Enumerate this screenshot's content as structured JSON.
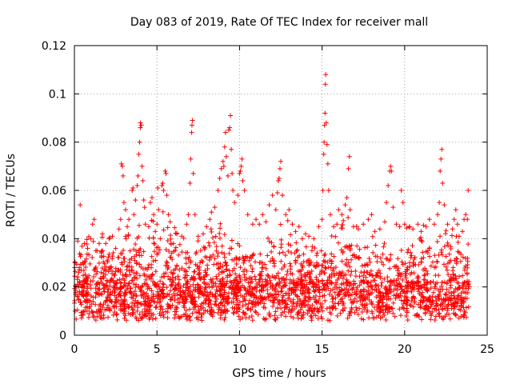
{
  "chart_data": {
    "type": "scatter",
    "title": "Day 083 of 2019, Rate Of TEC Index for receiver mall",
    "xlabel": "GPS time / hours",
    "ylabel": "ROTI / TECUs",
    "xlim": [
      0,
      25
    ],
    "ylim": [
      0,
      0.12
    ],
    "x_ticks": [
      0,
      5,
      10,
      15,
      20,
      25
    ],
    "x_tick_labels": [
      "0",
      "5",
      "10",
      "15",
      "20",
      "25"
    ],
    "y_ticks": [
      0,
      0.02,
      0.04,
      0.06,
      0.08,
      0.1,
      0.12
    ],
    "y_tick_labels": [
      "0",
      "0.02",
      "0.04",
      "0.06",
      "0.08",
      "0.1",
      "0.12"
    ],
    "grid": true,
    "marker": "+",
    "marker_color": "#ff0000",
    "series": [
      {
        "name": "ROTI",
        "points": [
          [
            0.05,
            0.03
          ],
          [
            0.1,
            0.02
          ],
          [
            0.2,
            0.039
          ],
          [
            0.3,
            0.028
          ],
          [
            0.35,
            0.054
          ],
          [
            0.5,
            0.03
          ],
          [
            0.6,
            0.038
          ],
          [
            0.8,
            0.036
          ],
          [
            1.0,
            0.04
          ],
          [
            1.1,
            0.046
          ],
          [
            1.2,
            0.048
          ],
          [
            1.3,
            0.035
          ],
          [
            1.5,
            0.038
          ],
          [
            1.7,
            0.042
          ],
          [
            1.9,
            0.038
          ],
          [
            2.1,
            0.04
          ],
          [
            2.3,
            0.041
          ],
          [
            2.5,
            0.036
          ],
          [
            2.7,
            0.044
          ],
          [
            2.8,
            0.048
          ],
          [
            2.85,
            0.071
          ],
          [
            2.9,
            0.07
          ],
          [
            2.95,
            0.066
          ],
          [
            3.0,
            0.055
          ],
          [
            3.1,
            0.052
          ],
          [
            3.2,
            0.045
          ],
          [
            3.3,
            0.048
          ],
          [
            3.5,
            0.06
          ],
          [
            3.55,
            0.061
          ],
          [
            3.6,
            0.05
          ],
          [
            3.7,
            0.056
          ],
          [
            3.8,
            0.062
          ],
          [
            3.85,
            0.066
          ],
          [
            3.9,
            0.075
          ],
          [
            3.95,
            0.08
          ],
          [
            4.0,
            0.086
          ],
          [
            4.0,
            0.088
          ],
          [
            4.05,
            0.087
          ],
          [
            4.1,
            0.07
          ],
          [
            4.15,
            0.064
          ],
          [
            4.2,
            0.056
          ],
          [
            4.25,
            0.053
          ],
          [
            4.3,
            0.046
          ],
          [
            4.5,
            0.045
          ],
          [
            4.6,
            0.055
          ],
          [
            4.7,
            0.057
          ],
          [
            4.8,
            0.05
          ],
          [
            4.9,
            0.043
          ],
          [
            5.0,
            0.046
          ],
          [
            5.05,
            0.061
          ],
          [
            5.1,
            0.052
          ],
          [
            5.2,
            0.04
          ],
          [
            5.3,
            0.062
          ],
          [
            5.35,
            0.063
          ],
          [
            5.4,
            0.06
          ],
          [
            5.5,
            0.068
          ],
          [
            5.55,
            0.067
          ],
          [
            5.6,
            0.058
          ],
          [
            5.7,
            0.05
          ],
          [
            5.8,
            0.047
          ],
          [
            6.0,
            0.038
          ],
          [
            6.2,
            0.042
          ],
          [
            6.5,
            0.041
          ],
          [
            6.8,
            0.046
          ],
          [
            6.9,
            0.05
          ],
          [
            7.0,
            0.063
          ],
          [
            7.05,
            0.073
          ],
          [
            7.1,
            0.084
          ],
          [
            7.12,
            0.087
          ],
          [
            7.15,
            0.089
          ],
          [
            7.2,
            0.067
          ],
          [
            7.3,
            0.05
          ],
          [
            7.5,
            0.041
          ],
          [
            7.8,
            0.042
          ],
          [
            8.0,
            0.045
          ],
          [
            8.2,
            0.048
          ],
          [
            8.3,
            0.051
          ],
          [
            8.5,
            0.053
          ],
          [
            8.7,
            0.06
          ],
          [
            8.8,
            0.065
          ],
          [
            8.9,
            0.069
          ],
          [
            9.0,
            0.072
          ],
          [
            9.05,
            0.07
          ],
          [
            9.1,
            0.078
          ],
          [
            9.15,
            0.084
          ],
          [
            9.2,
            0.074
          ],
          [
            9.3,
            0.066
          ],
          [
            9.35,
            0.085
          ],
          [
            9.4,
            0.086
          ],
          [
            9.45,
            0.091
          ],
          [
            9.5,
            0.077
          ],
          [
            9.55,
            0.067
          ],
          [
            9.6,
            0.06
          ],
          [
            9.7,
            0.055
          ],
          [
            9.9,
            0.058
          ],
          [
            10.0,
            0.067
          ],
          [
            10.05,
            0.068
          ],
          [
            10.1,
            0.07
          ],
          [
            10.15,
            0.073
          ],
          [
            10.2,
            0.064
          ],
          [
            10.3,
            0.06
          ],
          [
            10.5,
            0.05
          ],
          [
            10.8,
            0.046
          ],
          [
            11.0,
            0.048
          ],
          [
            11.2,
            0.046
          ],
          [
            11.4,
            0.05
          ],
          [
            11.6,
            0.047
          ],
          [
            11.8,
            0.054
          ],
          [
            12.0,
            0.058
          ],
          [
            12.2,
            0.052
          ],
          [
            12.3,
            0.059
          ],
          [
            12.35,
            0.064
          ],
          [
            12.4,
            0.065
          ],
          [
            12.45,
            0.069
          ],
          [
            12.5,
            0.072
          ],
          [
            12.6,
            0.058
          ],
          [
            12.8,
            0.05
          ],
          [
            13.0,
            0.052
          ],
          [
            13.2,
            0.046
          ],
          [
            13.4,
            0.043
          ],
          [
            13.6,
            0.045
          ],
          [
            13.8,
            0.04
          ],
          [
            14.0,
            0.042
          ],
          [
            14.2,
            0.041
          ],
          [
            14.5,
            0.04
          ],
          [
            14.8,
            0.045
          ],
          [
            15.0,
            0.048
          ],
          [
            15.05,
            0.06
          ],
          [
            15.1,
            0.075
          ],
          [
            15.12,
            0.08
          ],
          [
            15.15,
            0.087
          ],
          [
            15.18,
            0.092
          ],
          [
            15.2,
            0.104
          ],
          [
            15.22,
            0.108
          ],
          [
            15.25,
            0.088
          ],
          [
            15.3,
            0.079
          ],
          [
            15.35,
            0.071
          ],
          [
            15.4,
            0.06
          ],
          [
            15.5,
            0.05
          ],
          [
            15.7,
            0.045
          ],
          [
            15.9,
            0.046
          ],
          [
            16.0,
            0.052
          ],
          [
            16.2,
            0.05
          ],
          [
            16.4,
            0.054
          ],
          [
            16.5,
            0.057
          ],
          [
            16.6,
            0.069
          ],
          [
            16.65,
            0.074
          ],
          [
            16.7,
            0.052
          ],
          [
            16.9,
            0.045
          ],
          [
            17.2,
            0.044
          ],
          [
            17.5,
            0.046
          ],
          [
            17.8,
            0.048
          ],
          [
            18.0,
            0.05
          ],
          [
            18.2,
            0.043
          ],
          [
            18.5,
            0.044
          ],
          [
            18.8,
            0.047
          ],
          [
            18.9,
            0.055
          ],
          [
            19.0,
            0.062
          ],
          [
            19.1,
            0.068
          ],
          [
            19.15,
            0.07
          ],
          [
            19.2,
            0.068
          ],
          [
            19.3,
            0.053
          ],
          [
            19.5,
            0.046
          ],
          [
            19.7,
            0.045
          ],
          [
            19.8,
            0.06
          ],
          [
            19.9,
            0.055
          ],
          [
            20.0,
            0.046
          ],
          [
            20.3,
            0.045
          ],
          [
            20.5,
            0.044
          ],
          [
            20.8,
            0.046
          ],
          [
            21.0,
            0.043
          ],
          [
            21.3,
            0.045
          ],
          [
            21.5,
            0.048
          ],
          [
            21.8,
            0.046
          ],
          [
            22.0,
            0.05
          ],
          [
            22.1,
            0.055
          ],
          [
            22.15,
            0.068
          ],
          [
            22.2,
            0.073
          ],
          [
            22.25,
            0.077
          ],
          [
            22.3,
            0.063
          ],
          [
            22.4,
            0.054
          ],
          [
            22.6,
            0.046
          ],
          [
            22.9,
            0.044
          ],
          [
            23.0,
            0.048
          ],
          [
            23.1,
            0.052
          ],
          [
            23.2,
            0.046
          ],
          [
            23.3,
            0.041
          ],
          [
            23.5,
            0.043
          ],
          [
            23.6,
            0.048
          ],
          [
            23.7,
            0.05
          ],
          [
            23.8,
            0.048
          ],
          [
            23.85,
            0.06
          ]
        ]
      }
    ]
  }
}
